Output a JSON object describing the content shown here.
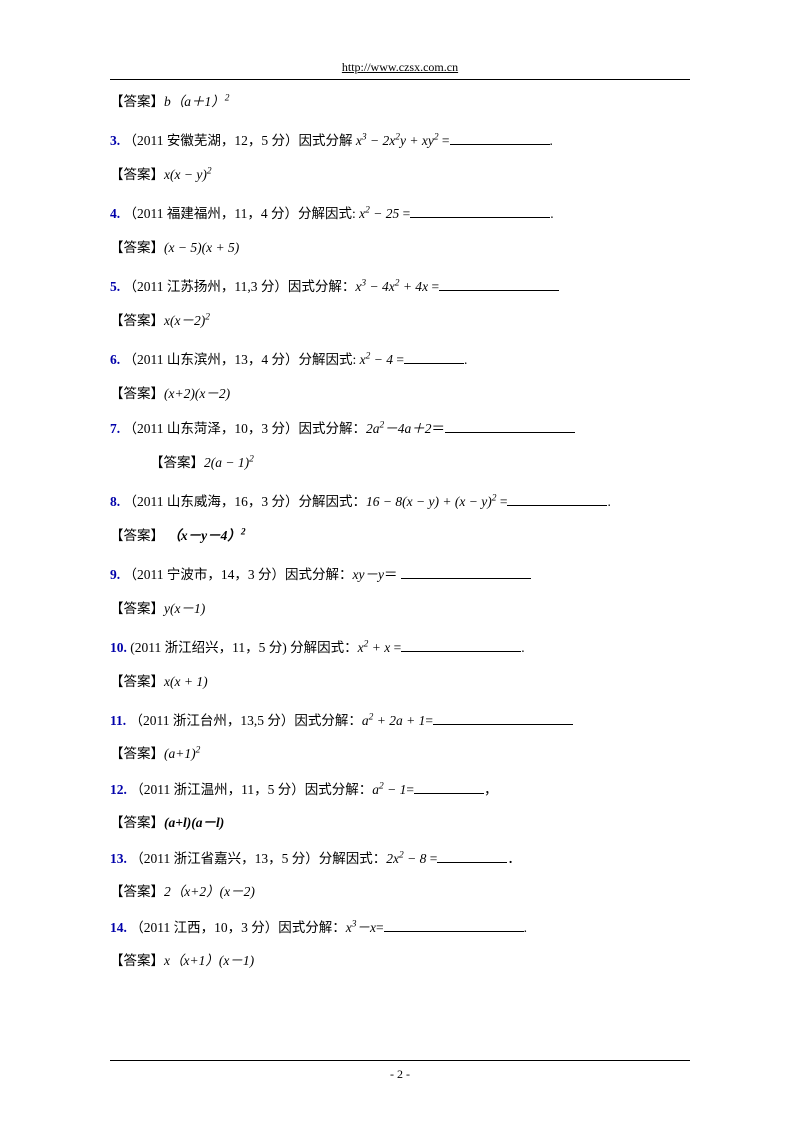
{
  "header_url": "http://www.czsx.com.cn",
  "page_number": "- 2 -",
  "items": [
    {
      "type": "answer",
      "label": "【答案】",
      "formula": "b（a＋1）²"
    },
    {
      "type": "question",
      "num": "3.",
      "text": "（2011 安徽芜湖，12，5 分）因式分解  ",
      "formula": "x³ − 2x²y + xy²",
      "after": " =",
      "blank": "w100",
      "tail": "."
    },
    {
      "type": "answer",
      "label": "【答案】",
      "formula": "x(x − y)²"
    },
    {
      "type": "question",
      "num": "4.",
      "text": "（2011 福建福州，11，4 分）分解因式: ",
      "formula": "x² − 25",
      "after": " =",
      "blank": "w140",
      "tail": "."
    },
    {
      "type": "answer",
      "label": "【答案】",
      "formula": "(x − 5)(x + 5)"
    },
    {
      "type": "question",
      "num": "5.",
      "text": "（2011 江苏扬州，11,3 分）因式分解：",
      "formula": "x³ − 4x² + 4x",
      "after": " =",
      "blank": "w120",
      "tail": ""
    },
    {
      "type": "answer",
      "label": "【答案】",
      "formula": "x(x－2)²"
    },
    {
      "type": "question",
      "num": "6.",
      "text": "（2011 山东滨州，13，4 分）分解因式: ",
      "formula": "x² − 4",
      "after": " =",
      "blank": "w60",
      "tail": "."
    },
    {
      "type": "answer",
      "label": "【答案】",
      "formula": "(x+2)(x－2)",
      "tight": true
    },
    {
      "type": "question",
      "num": "7.",
      "text": "（2011 山东菏泽，10，3 分）因式分解：",
      "formula": "2a²－4a＋2",
      "after": "＝",
      "blank": "w130",
      "tail": ""
    },
    {
      "type": "answer",
      "label": "【答案】",
      "formula": "2(a − 1)²",
      "indent": true
    },
    {
      "type": "question",
      "num": "8.",
      "text": "（2011 山东威海，16，3 分）分解因式：",
      "formula": "16 − 8(x − y) + (x − y)²",
      "after": " =",
      "blank": "w100",
      "tail": "."
    },
    {
      "type": "answer",
      "label": "【答案】 ",
      "formula": "（x－y－4）²",
      "bold": true
    },
    {
      "type": "question",
      "num": "9.",
      "text": "（2011 宁波市，14，3 分）因式分解：",
      "formula": "xy－y",
      "after": "＝ ",
      "blank": "w130",
      "tail": ""
    },
    {
      "type": "answer",
      "label": "【答案】",
      "formula": "y(x－1)"
    },
    {
      "type": "question",
      "num": "10.",
      "text": " (2011 浙江绍兴，11，5 分)  分解因式：",
      "formula": "x² + x",
      "after": " =",
      "blank": "w120",
      "tail": "."
    },
    {
      "type": "answer",
      "label": "【答案】",
      "formula": "x(x + 1)"
    },
    {
      "type": "question",
      "num": "11.",
      "text": "（2011 浙江台州，13,5 分）因式分解：",
      "formula": "a² + 2a + 1",
      "after": "=",
      "blank": "w140",
      "tail": ""
    },
    {
      "type": "answer",
      "label": "【答案】",
      "formula": "(a+1)²",
      "tight": true
    },
    {
      "type": "question",
      "num": "12.",
      "text": "（2011 浙江温州，11，5 分）因式分解：",
      "formula": "a² − 1",
      "after": "=",
      "blank": "w70",
      "tail": "，"
    },
    {
      "type": "answer",
      "label": "【答案】",
      "formula": "(a+l)(a－l)",
      "bold": true,
      "tight": true
    },
    {
      "type": "question",
      "num": "13.",
      "text": "（2011 浙江省嘉兴，13，5 分）分解因式：",
      "formula": "2x² − 8",
      "after": " =",
      "blank": "w70",
      "tail": "．"
    },
    {
      "type": "answer",
      "label": "【答案】",
      "formula": "2（x+2）(x－2)",
      "tight": true
    },
    {
      "type": "question",
      "num": "14.",
      "text": "（2011 江西，10，3 分）因式分解：",
      "formula": "x³－x",
      "after": "=",
      "blank": "w140",
      "tail": "."
    },
    {
      "type": "answer",
      "label": "【答案】",
      "formula": "x（x+1）(x－1)"
    }
  ]
}
